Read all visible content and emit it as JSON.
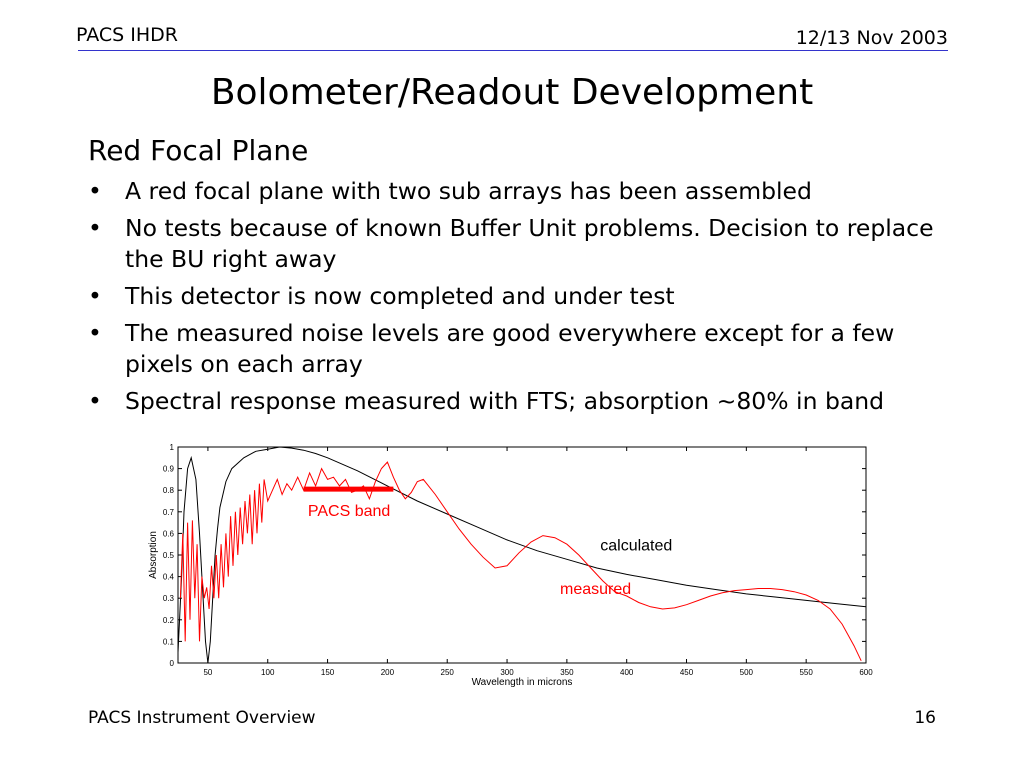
{
  "header": {
    "left": "PACS IHDR",
    "right": "12/13 Nov 2003"
  },
  "title": "Bolometer/Readout Development",
  "section": "Red Focal Plane",
  "bullets": [
    {
      "mark": "•",
      "text": "A red focal plane with two sub arrays has been assembled"
    },
    {
      "mark": "•",
      "text": "No tests because of known Buffer Unit problems.  Decision to replace the BU right away"
    },
    {
      "mark": "•",
      "text": "This detector is now completed and under test"
    },
    {
      "mark": "•",
      "text": "The measured noise levels are good everywhere except for a few pixels on each array"
    },
    {
      "mark": "•",
      "text": "Spectral response measured with FTS; absorption ~80% in band"
    }
  ],
  "footer": {
    "left": "PACS Instrument Overview",
    "right": "16"
  },
  "chart_data": {
    "type": "line",
    "title": "",
    "xlabel": "Wavelength in microns",
    "ylabel": "Absorption",
    "xlim": [
      25,
      600
    ],
    "ylim": [
      0,
      1
    ],
    "xticks": [
      "50",
      "100",
      "150",
      "200",
      "250",
      "300",
      "350",
      "400",
      "450",
      "500",
      "550",
      "600"
    ],
    "yticks": [
      "0",
      "0.1",
      "0.2",
      "0.3",
      "0.4",
      "0.5",
      "0.6",
      "0.7",
      "0.8",
      "0.9",
      "1"
    ],
    "grid": false,
    "series": [
      {
        "name": "calculated",
        "color": "#000000",
        "x": [
          25,
          28,
          30,
          33,
          36,
          40,
          43,
          46,
          48,
          50,
          52,
          54,
          56,
          58,
          60,
          65,
          70,
          80,
          90,
          100,
          110,
          120,
          130,
          140,
          150,
          175,
          200,
          225,
          250,
          275,
          300,
          325,
          350,
          375,
          400,
          425,
          450,
          475,
          500,
          525,
          550,
          575,
          600
        ],
        "y": [
          0.05,
          0.4,
          0.7,
          0.9,
          0.95,
          0.85,
          0.6,
          0.3,
          0.1,
          0.0,
          0.1,
          0.3,
          0.5,
          0.62,
          0.72,
          0.84,
          0.9,
          0.95,
          0.98,
          0.99,
          1.0,
          0.995,
          0.985,
          0.97,
          0.95,
          0.89,
          0.82,
          0.75,
          0.69,
          0.63,
          0.57,
          0.52,
          0.48,
          0.44,
          0.41,
          0.385,
          0.36,
          0.34,
          0.32,
          0.305,
          0.29,
          0.275,
          0.26
        ]
      },
      {
        "name": "measured",
        "color": "#ff0000",
        "x": [
          27,
          29,
          31,
          33,
          35,
          37,
          39,
          41,
          43,
          45,
          47,
          49,
          51,
          53,
          55,
          57,
          59,
          61,
          63,
          65,
          67,
          69,
          71,
          73,
          75,
          77,
          79,
          81,
          83,
          85,
          87,
          89,
          91,
          93,
          95,
          97,
          100,
          104,
          108,
          112,
          116,
          120,
          125,
          130,
          135,
          140,
          145,
          150,
          155,
          160,
          165,
          170,
          175,
          180,
          185,
          190,
          195,
          200,
          205,
          210,
          215,
          220,
          225,
          230,
          240,
          250,
          260,
          270,
          280,
          290,
          300,
          310,
          320,
          330,
          340,
          350,
          360,
          370,
          380,
          390,
          400,
          410,
          420,
          430,
          440,
          450,
          460,
          470,
          480,
          490,
          500,
          510,
          520,
          530,
          540,
          550,
          560,
          570,
          580,
          590,
          596
        ],
        "y": [
          0.3,
          0.6,
          0.1,
          0.65,
          0.2,
          0.66,
          0.3,
          0.55,
          0.1,
          0.4,
          0.3,
          0.35,
          0.25,
          0.45,
          0.3,
          0.5,
          0.3,
          0.55,
          0.35,
          0.6,
          0.4,
          0.68,
          0.45,
          0.7,
          0.5,
          0.72,
          0.55,
          0.75,
          0.6,
          0.78,
          0.55,
          0.8,
          0.6,
          0.83,
          0.65,
          0.85,
          0.75,
          0.8,
          0.85,
          0.78,
          0.83,
          0.8,
          0.86,
          0.8,
          0.88,
          0.82,
          0.9,
          0.85,
          0.86,
          0.82,
          0.85,
          0.79,
          0.8,
          0.82,
          0.76,
          0.84,
          0.9,
          0.93,
          0.86,
          0.8,
          0.76,
          0.79,
          0.84,
          0.85,
          0.78,
          0.7,
          0.62,
          0.55,
          0.49,
          0.44,
          0.45,
          0.51,
          0.56,
          0.59,
          0.58,
          0.55,
          0.5,
          0.44,
          0.38,
          0.33,
          0.31,
          0.28,
          0.26,
          0.25,
          0.255,
          0.27,
          0.29,
          0.31,
          0.325,
          0.335,
          0.34,
          0.345,
          0.345,
          0.34,
          0.33,
          0.315,
          0.29,
          0.25,
          0.18,
          0.08,
          0.01
        ]
      }
    ],
    "annotations": [
      {
        "text": "PACS band",
        "x": 168,
        "y": 0.68,
        "color": "#ff0000"
      },
      {
        "text": "calculated",
        "x": 408,
        "y": 0.52,
        "color": "#000000"
      },
      {
        "text": "measured",
        "x": 374,
        "y": 0.32,
        "color": "#ff0000"
      }
    ],
    "band": {
      "x1": 130,
      "x2": 205,
      "y": 0.805,
      "color": "#ff0000"
    }
  }
}
